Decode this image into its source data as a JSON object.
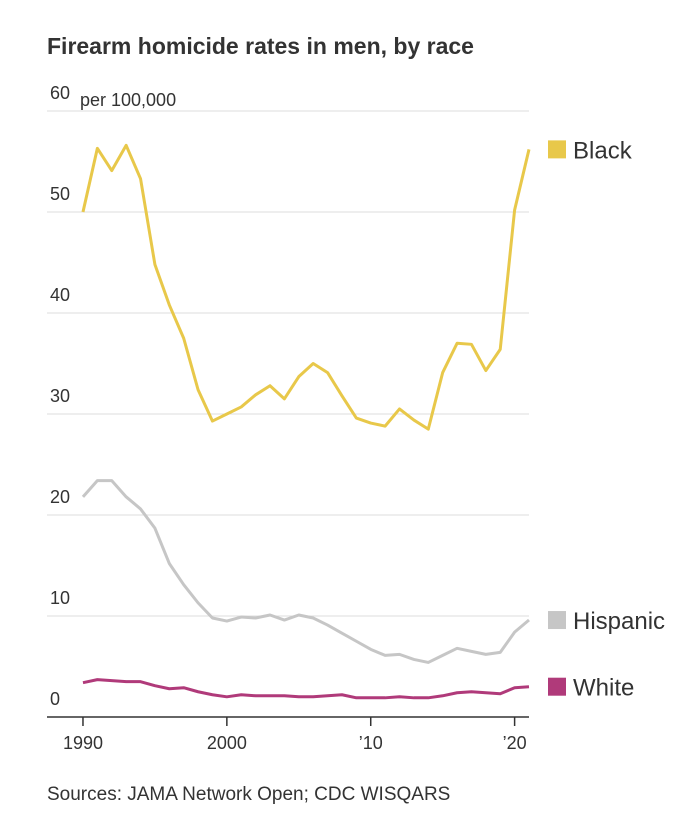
{
  "chart_data": {
    "type": "line",
    "title": "Firearm homicide rates in men, by race",
    "y_label": "per 100,000",
    "source": "Sources: JAMA Network Open; CDC WISQARS",
    "x": [
      1990,
      1991,
      1992,
      1993,
      1994,
      1995,
      1996,
      1997,
      1998,
      1999,
      2000,
      2001,
      2002,
      2003,
      2004,
      2005,
      2006,
      2007,
      2008,
      2009,
      2010,
      2011,
      2012,
      2013,
      2014,
      2015,
      2016,
      2017,
      2018,
      2019,
      2020,
      2021
    ],
    "series": [
      {
        "name": "Black",
        "color": "#e8c84a",
        "values": [
          50.0,
          56.3,
          54.1,
          56.6,
          53.3,
          44.8,
          40.8,
          37.5,
          32.4,
          29.3,
          30.0,
          30.7,
          31.9,
          32.8,
          31.5,
          33.7,
          35.0,
          34.1,
          31.8,
          29.6,
          29.1,
          28.8,
          30.5,
          29.4,
          28.5,
          34.1,
          37.0,
          36.9,
          34.3,
          36.4,
          50.2,
          56.2
        ]
      },
      {
        "name": "Hispanic",
        "color": "#c6c6c6",
        "values": [
          21.8,
          23.4,
          23.4,
          21.8,
          20.6,
          18.7,
          15.2,
          13.1,
          11.3,
          9.8,
          9.5,
          9.9,
          9.8,
          10.1,
          9.6,
          10.1,
          9.8,
          9.1,
          8.3,
          7.5,
          6.7,
          6.1,
          6.2,
          5.7,
          5.4,
          6.1,
          6.8,
          6.5,
          6.2,
          6.4,
          8.4,
          9.6
        ]
      },
      {
        "name": "White",
        "color": "#b03a7a",
        "values": [
          3.4,
          3.7,
          3.6,
          3.5,
          3.5,
          3.1,
          2.8,
          2.9,
          2.5,
          2.2,
          2.0,
          2.2,
          2.1,
          2.1,
          2.1,
          2.0,
          2.0,
          2.1,
          2.2,
          1.9,
          1.9,
          1.9,
          2.0,
          1.9,
          1.9,
          2.1,
          2.4,
          2.5,
          2.4,
          2.3,
          2.9,
          3.0
        ]
      }
    ],
    "xlim": [
      1987.5,
      2021
    ],
    "xticks": [
      1990,
      2000,
      {
        "value": 2010,
        "label": "’10"
      },
      {
        "value": 2020,
        "label": "’20"
      }
    ],
    "ylim": [
      0,
      60
    ],
    "yticks": [
      0,
      10,
      20,
      30,
      40,
      50,
      60
    ],
    "grid": true
  }
}
